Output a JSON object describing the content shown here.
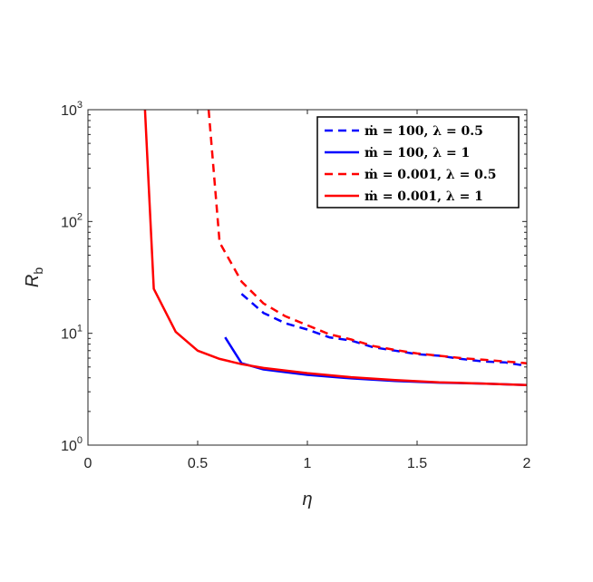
{
  "chart_data": {
    "type": "line",
    "title": "",
    "xlabel": "η",
    "ylabel": "R_b",
    "ylabel_parts": {
      "base": "R",
      "sub": "b"
    },
    "xlim": [
      0,
      2
    ],
    "ylim": [
      1,
      1000
    ],
    "yscale": "log",
    "grid": false,
    "legend_position": "top-right",
    "x_ticks": [
      0,
      0.5,
      1,
      1.5,
      2
    ],
    "x_tick_labels": [
      "0",
      "0.5",
      "1",
      "1.5",
      "2"
    ],
    "y_ticks": [
      1,
      10,
      100,
      1000
    ],
    "y_tick_labels": [
      {
        "base": "10",
        "exp": "0"
      },
      {
        "base": "10",
        "exp": "1"
      },
      {
        "base": "10",
        "exp": "2"
      },
      {
        "base": "10",
        "exp": "3"
      }
    ],
    "series": [
      {
        "name": "ṁ = 100, λ = 0.5",
        "color": "#0000ff",
        "dash": "dashed",
        "x": [
          0.7,
          0.75,
          0.8,
          0.9,
          1.0,
          1.1,
          1.2,
          1.3,
          1.4,
          1.5,
          1.6,
          1.7,
          1.8,
          1.9,
          2.0
        ],
        "y": [
          22.5,
          18.5,
          15.2,
          12.3,
          10.8,
          9.2,
          8.6,
          7.5,
          7.0,
          6.5,
          6.3,
          5.9,
          5.6,
          5.5,
          5.1
        ]
      },
      {
        "name": "ṁ = 100, λ = 1",
        "color": "#0000ff",
        "dash": "solid",
        "x": [
          0.625,
          0.7,
          0.8,
          1.0,
          1.2,
          1.4,
          1.6,
          1.8,
          2.0
        ],
        "y": [
          9.2,
          5.4,
          4.75,
          4.25,
          3.95,
          3.75,
          3.62,
          3.55,
          3.45
        ]
      },
      {
        "name": "ṁ = 0.001, λ = 0.5",
        "color": "#ff0000",
        "dash": "dashed",
        "x": [
          0.55,
          0.6,
          0.7,
          0.8,
          0.9,
          1.0,
          1.1,
          1.2,
          1.3,
          1.4,
          1.5,
          1.6,
          1.7,
          1.8,
          1.9,
          2.0
        ],
        "y": [
          1000,
          65,
          29,
          18.5,
          14.2,
          11.8,
          9.8,
          8.8,
          7.7,
          7.1,
          6.6,
          6.3,
          6.0,
          5.8,
          5.6,
          5.4
        ]
      },
      {
        "name": "ṁ = 0.001, λ = 1",
        "color": "#ff0000",
        "dash": "solid",
        "x": [
          0.26,
          0.3,
          0.4,
          0.5,
          0.6,
          0.7,
          0.8,
          1.0,
          1.2,
          1.4,
          1.6,
          1.8,
          2.0
        ],
        "y": [
          1000,
          25,
          10.3,
          7.0,
          5.9,
          5.3,
          4.9,
          4.4,
          4.05,
          3.82,
          3.65,
          3.55,
          3.45
        ]
      }
    ],
    "legend": [
      {
        "label": "ṁ = 100, λ = 0.5",
        "color": "#0000ff",
        "dash": "dashed"
      },
      {
        "label": "ṁ = 100, λ = 1",
        "color": "#0000ff",
        "dash": "solid"
      },
      {
        "label": "ṁ = 0.001, λ = 0.5",
        "color": "#ff0000",
        "dash": "dashed"
      },
      {
        "label": "ṁ = 0.001, λ = 1",
        "color": "#ff0000",
        "dash": "solid"
      }
    ]
  }
}
